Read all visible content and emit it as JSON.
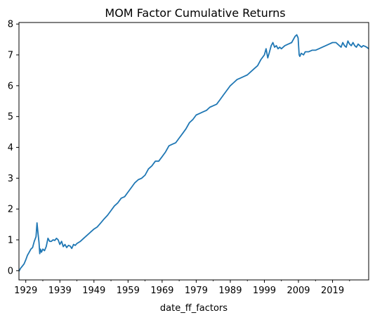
{
  "chart_data": {
    "type": "line",
    "title": "MOM Factor Cumulative Returns",
    "xlabel": "date_ff_factors",
    "ylabel": "",
    "xlim": [
      1927.0,
      2029.6
    ],
    "ylim": [
      -0.3,
      8.05
    ],
    "x_ticks": [
      1929,
      1939,
      1949,
      1959,
      1969,
      1979,
      1989,
      1999,
      2009,
      2019
    ],
    "x_tick_labels": [
      "1929",
      "1939",
      "1949",
      "1959",
      "1969",
      "1979",
      "1989",
      "1999",
      "2009",
      "2019"
    ],
    "y_ticks": [
      0,
      1,
      2,
      3,
      4,
      5,
      6,
      7,
      8
    ],
    "y_tick_labels": [
      "0",
      "1",
      "2",
      "3",
      "4",
      "5",
      "6",
      "7",
      "8"
    ],
    "grid": false,
    "legend": "none",
    "line_color": "#1f77b4",
    "series": [
      {
        "x": [
          1927.0,
          1927.5,
          1928.0,
          1928.5,
          1929.0,
          1929.5,
          1930.0,
          1930.5,
          1931.0,
          1931.5,
          1932.0,
          1932.3,
          1932.6,
          1932.9,
          1933.1,
          1933.3,
          1933.6,
          1934.0,
          1934.5,
          1935.0,
          1935.5,
          1936.0,
          1936.5,
          1937.0,
          1937.5,
          1938.0,
          1938.5,
          1939.0,
          1939.5,
          1940.0,
          1940.5,
          1941.0,
          1941.5,
          1942.0,
          1942.5,
          1943.0,
          1943.5,
          1944.0,
          1945.0,
          1946.0,
          1947.0,
          1948.0,
          1949.0,
          1950.0,
          1951.0,
          1952.0,
          1953.0,
          1954.0,
          1955.0,
          1956.0,
          1957.0,
          1958.0,
          1959.0,
          1960.0,
          1961.0,
          1962.0,
          1963.0,
          1964.0,
          1965.0,
          1966.0,
          1967.0,
          1968.0,
          1969.0,
          1970.0,
          1971.0,
          1972.0,
          1973.0,
          1974.0,
          1975.0,
          1976.0,
          1977.0,
          1978.0,
          1979.0,
          1980.0,
          1981.0,
          1982.0,
          1983.0,
          1984.0,
          1985.0,
          1986.0,
          1987.0,
          1988.0,
          1989.0,
          1990.0,
          1991.0,
          1992.0,
          1993.0,
          1994.0,
          1995.0,
          1996.0,
          1997.0,
          1998.0,
          1999.0,
          1999.5,
          2000.0,
          2000.5,
          2001.0,
          2001.5,
          2002.0,
          2002.5,
          2003.0,
          2003.5,
          2004.0,
          2005.0,
          2006.0,
          2007.0,
          2008.0,
          2008.5,
          2008.9,
          2009.2,
          2009.4,
          2009.8,
          2010.5,
          2011.0,
          2012.0,
          2013.0,
          2014.0,
          2015.0,
          2016.0,
          2017.0,
          2018.0,
          2019.0,
          2020.0,
          2020.5,
          2021.0,
          2021.5,
          2022.0,
          2022.5,
          2023.0,
          2023.5,
          2024.0,
          2024.5,
          2025.0,
          2025.5,
          2026.0,
          2026.5,
          2027.0,
          2027.5,
          2028.0,
          2028.5,
          2029.0,
          2029.6
        ],
        "y": [
          -0.02,
          0.08,
          0.15,
          0.22,
          0.35,
          0.5,
          0.6,
          0.7,
          0.75,
          0.95,
          1.1,
          1.55,
          1.2,
          0.9,
          0.55,
          0.7,
          0.6,
          0.7,
          0.65,
          0.78,
          1.05,
          0.95,
          0.95,
          1.0,
          0.98,
          1.05,
          1.0,
          0.85,
          0.95,
          0.78,
          0.85,
          0.75,
          0.82,
          0.8,
          0.72,
          0.85,
          0.82,
          0.88,
          0.95,
          1.05,
          1.15,
          1.25,
          1.35,
          1.42,
          1.55,
          1.68,
          1.8,
          1.95,
          2.1,
          2.2,
          2.35,
          2.4,
          2.55,
          2.7,
          2.85,
          2.95,
          3.0,
          3.1,
          3.3,
          3.4,
          3.55,
          3.55,
          3.7,
          3.85,
          4.05,
          4.1,
          4.15,
          4.3,
          4.45,
          4.6,
          4.8,
          4.9,
          5.05,
          5.1,
          5.15,
          5.2,
          5.3,
          5.35,
          5.4,
          5.55,
          5.7,
          5.85,
          6.0,
          6.1,
          6.2,
          6.25,
          6.3,
          6.35,
          6.45,
          6.55,
          6.65,
          6.85,
          7.0,
          7.2,
          6.9,
          7.1,
          7.3,
          7.4,
          7.25,
          7.3,
          7.2,
          7.25,
          7.2,
          7.3,
          7.35,
          7.4,
          7.6,
          7.65,
          7.55,
          7.0,
          6.95,
          7.05,
          7.0,
          7.1,
          7.1,
          7.15,
          7.15,
          7.2,
          7.25,
          7.3,
          7.35,
          7.4,
          7.4,
          7.35,
          7.3,
          7.25,
          7.4,
          7.3,
          7.25,
          7.45,
          7.35,
          7.3,
          7.4,
          7.3,
          7.25,
          7.35,
          7.3,
          7.25,
          7.3,
          7.28,
          7.25,
          7.2
        ]
      }
    ]
  }
}
